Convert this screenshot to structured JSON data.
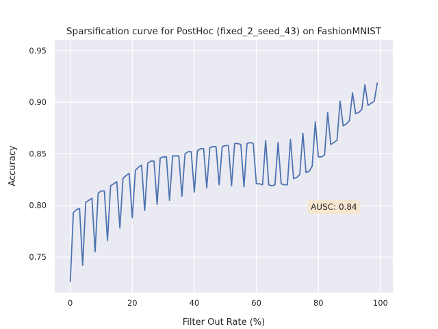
{
  "chart_data": {
    "type": "line",
    "title": "Sparsification curve for PostHoc (fixed_2_seed_43) on FashionMNIST",
    "xlabel": "Filter Out Rate (%)",
    "ylabel": "Accuracy",
    "xlim": [
      -5,
      104
    ],
    "ylim": [
      0.7155,
      0.9605
    ],
    "xticks": [
      0,
      20,
      40,
      60,
      80,
      100
    ],
    "yticks": [
      0.75,
      0.8,
      0.85,
      0.9,
      0.95
    ],
    "ytick_labels": [
      "0.75",
      "0.80",
      "0.85",
      "0.90",
      "0.95"
    ],
    "grid": true,
    "colors": {
      "background": "#eaeaf2",
      "grid": "#ffffff",
      "line": "#4c72b0",
      "annotation_bg": "#f5e6cf"
    },
    "annotation": {
      "text": "AUSC: 0.84",
      "x": 85,
      "y": 0.7985
    },
    "series": [
      {
        "x": [
          0,
          1,
          2,
          3,
          4,
          5,
          6,
          7,
          8,
          9,
          10,
          11,
          12,
          13,
          14,
          15,
          16,
          17,
          18,
          19,
          20,
          21,
          22,
          23,
          24,
          25,
          26,
          27,
          28,
          29,
          30,
          31,
          32,
          33,
          34,
          35,
          36,
          37,
          38,
          39,
          40,
          41,
          42,
          43,
          44,
          45,
          46,
          47,
          48,
          49,
          50,
          51,
          52,
          53,
          54,
          55,
          56,
          57,
          58,
          59,
          60,
          61,
          62,
          63,
          64,
          65,
          66,
          67,
          68,
          69,
          70,
          71,
          72,
          73,
          74,
          75,
          76,
          77,
          78,
          79,
          80,
          81,
          82,
          83,
          84,
          85,
          86,
          87,
          88,
          89,
          90,
          91,
          92,
          93,
          94,
          95,
          96,
          97,
          98,
          99
        ],
        "values": [
          0.726,
          0.793,
          0.796,
          0.797,
          0.742,
          0.803,
          0.805,
          0.807,
          0.755,
          0.812,
          0.814,
          0.814,
          0.766,
          0.819,
          0.821,
          0.823,
          0.778,
          0.826,
          0.829,
          0.831,
          0.788,
          0.834,
          0.837,
          0.839,
          0.795,
          0.841,
          0.843,
          0.843,
          0.801,
          0.846,
          0.847,
          0.847,
          0.805,
          0.848,
          0.848,
          0.848,
          0.809,
          0.85,
          0.852,
          0.852,
          0.813,
          0.853,
          0.855,
          0.855,
          0.817,
          0.856,
          0.857,
          0.857,
          0.82,
          0.857,
          0.858,
          0.858,
          0.819,
          0.86,
          0.86,
          0.859,
          0.818,
          0.86,
          0.861,
          0.86,
          0.821,
          0.821,
          0.82,
          0.863,
          0.82,
          0.819,
          0.82,
          0.861,
          0.821,
          0.82,
          0.82,
          0.864,
          0.826,
          0.827,
          0.83,
          0.87,
          0.832,
          0.833,
          0.838,
          0.881,
          0.847,
          0.847,
          0.849,
          0.89,
          0.859,
          0.861,
          0.863,
          0.901,
          0.877,
          0.879,
          0.882,
          0.909,
          0.889,
          0.89,
          0.893,
          0.917,
          0.897,
          0.899,
          0.901,
          0.919
        ]
      }
    ]
  }
}
